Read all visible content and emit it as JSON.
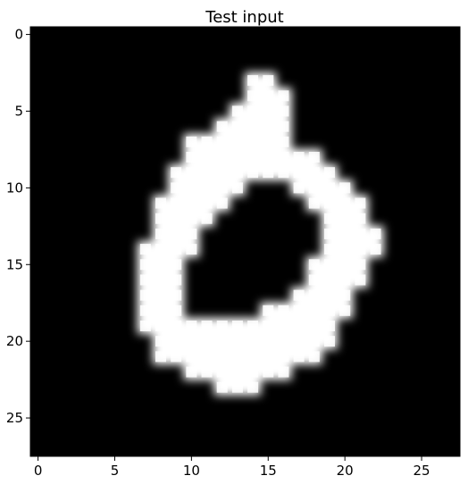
{
  "chart_data": {
    "type": "heatmap",
    "title": "Test input",
    "xlabel": "",
    "ylabel": "",
    "colormap": "gray",
    "background_color": "#000000",
    "stroke_color": "#ffffff",
    "grid": false,
    "x_ticks": [
      0,
      5,
      10,
      15,
      20,
      25
    ],
    "y_ticks": [
      0,
      5,
      10,
      15,
      20,
      25
    ],
    "xlim": [
      -0.5,
      27.5
    ],
    "ylim": [
      27.5,
      -0.5
    ],
    "grid_size": [
      28,
      28
    ],
    "value_range": [
      0,
      1
    ],
    "stroke_cells": [
      [
        3,
        14
      ],
      [
        3,
        15
      ],
      [
        4,
        14
      ],
      [
        4,
        15
      ],
      [
        4,
        16
      ],
      [
        5,
        13
      ],
      [
        5,
        14
      ],
      [
        5,
        15
      ],
      [
        5,
        16
      ],
      [
        6,
        12
      ],
      [
        6,
        13
      ],
      [
        6,
        14
      ],
      [
        6,
        15
      ],
      [
        6,
        16
      ],
      [
        7,
        10
      ],
      [
        7,
        11
      ],
      [
        7,
        12
      ],
      [
        7,
        13
      ],
      [
        7,
        14
      ],
      [
        7,
        15
      ],
      [
        7,
        16
      ],
      [
        8,
        10
      ],
      [
        8,
        11
      ],
      [
        8,
        12
      ],
      [
        8,
        13
      ],
      [
        8,
        14
      ],
      [
        8,
        15
      ],
      [
        8,
        16
      ],
      [
        8,
        17
      ],
      [
        8,
        18
      ],
      [
        9,
        9
      ],
      [
        9,
        10
      ],
      [
        9,
        11
      ],
      [
        9,
        12
      ],
      [
        9,
        13
      ],
      [
        9,
        14
      ],
      [
        9,
        15
      ],
      [
        9,
        16
      ],
      [
        9,
        17
      ],
      [
        9,
        18
      ],
      [
        9,
        19
      ],
      [
        10,
        9
      ],
      [
        10,
        10
      ],
      [
        10,
        11
      ],
      [
        10,
        12
      ],
      [
        10,
        13
      ],
      [
        10,
        17
      ],
      [
        10,
        18
      ],
      [
        10,
        19
      ],
      [
        10,
        20
      ],
      [
        11,
        8
      ],
      [
        11,
        9
      ],
      [
        11,
        10
      ],
      [
        11,
        11
      ],
      [
        11,
        12
      ],
      [
        11,
        18
      ],
      [
        11,
        19
      ],
      [
        11,
        20
      ],
      [
        11,
        21
      ],
      [
        12,
        8
      ],
      [
        12,
        9
      ],
      [
        12,
        10
      ],
      [
        12,
        11
      ],
      [
        12,
        19
      ],
      [
        12,
        20
      ],
      [
        12,
        21
      ],
      [
        13,
        8
      ],
      [
        13,
        9
      ],
      [
        13,
        10
      ],
      [
        13,
        19
      ],
      [
        13,
        20
      ],
      [
        13,
        21
      ],
      [
        13,
        22
      ],
      [
        14,
        7
      ],
      [
        14,
        8
      ],
      [
        14,
        9
      ],
      [
        14,
        10
      ],
      [
        14,
        19
      ],
      [
        14,
        20
      ],
      [
        14,
        21
      ],
      [
        14,
        22
      ],
      [
        15,
        7
      ],
      [
        15,
        8
      ],
      [
        15,
        9
      ],
      [
        15,
        18
      ],
      [
        15,
        19
      ],
      [
        15,
        20
      ],
      [
        15,
        21
      ],
      [
        16,
        7
      ],
      [
        16,
        8
      ],
      [
        16,
        9
      ],
      [
        16,
        18
      ],
      [
        16,
        19
      ],
      [
        16,
        20
      ],
      [
        16,
        21
      ],
      [
        17,
        7
      ],
      [
        17,
        8
      ],
      [
        17,
        9
      ],
      [
        17,
        17
      ],
      [
        17,
        18
      ],
      [
        17,
        19
      ],
      [
        17,
        20
      ],
      [
        18,
        7
      ],
      [
        18,
        8
      ],
      [
        18,
        9
      ],
      [
        18,
        15
      ],
      [
        18,
        16
      ],
      [
        18,
        17
      ],
      [
        18,
        18
      ],
      [
        18,
        19
      ],
      [
        18,
        20
      ],
      [
        19,
        7
      ],
      [
        19,
        8
      ],
      [
        19,
        9
      ],
      [
        19,
        10
      ],
      [
        19,
        11
      ],
      [
        19,
        12
      ],
      [
        19,
        13
      ],
      [
        19,
        14
      ],
      [
        19,
        15
      ],
      [
        19,
        16
      ],
      [
        19,
        17
      ],
      [
        19,
        18
      ],
      [
        19,
        19
      ],
      [
        20,
        8
      ],
      [
        20,
        9
      ],
      [
        20,
        10
      ],
      [
        20,
        11
      ],
      [
        20,
        12
      ],
      [
        20,
        13
      ],
      [
        20,
        14
      ],
      [
        20,
        15
      ],
      [
        20,
        16
      ],
      [
        20,
        17
      ],
      [
        20,
        18
      ],
      [
        20,
        19
      ],
      [
        21,
        8
      ],
      [
        21,
        9
      ],
      [
        21,
        10
      ],
      [
        21,
        11
      ],
      [
        21,
        12
      ],
      [
        21,
        13
      ],
      [
        21,
        14
      ],
      [
        21,
        15
      ],
      [
        21,
        16
      ],
      [
        21,
        17
      ],
      [
        21,
        18
      ],
      [
        22,
        10
      ],
      [
        22,
        11
      ],
      [
        22,
        12
      ],
      [
        22,
        13
      ],
      [
        22,
        14
      ],
      [
        22,
        15
      ],
      [
        22,
        16
      ],
      [
        23,
        12
      ],
      [
        23,
        13
      ],
      [
        23,
        14
      ]
    ]
  }
}
